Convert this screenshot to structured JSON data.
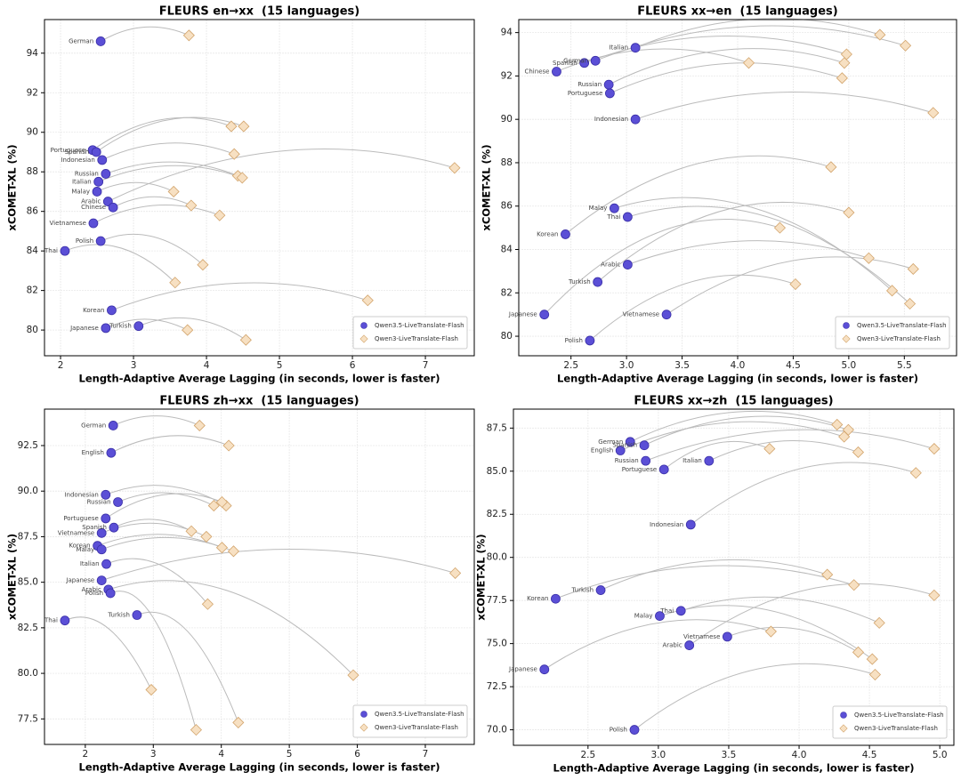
{
  "chart_data": [
    {
      "type": "scatter",
      "title": "FLEURS en→xx  (15 languages)",
      "xlabel": "Length-Adaptive Average Lagging (in seconds, lower is faster)",
      "ylabel": "xCOMET-XL (%)",
      "xlim": [
        1.78,
        7.67
      ],
      "ylim": [
        78.7,
        95.7
      ],
      "xticks": [
        2,
        3,
        4,
        5,
        6,
        7
      ],
      "yticks": [
        80,
        82,
        84,
        86,
        88,
        90,
        92,
        94
      ],
      "grid": true,
      "legend": "lower right",
      "categories": [
        "German",
        "Portuguese",
        "Spanish",
        "Indonesian",
        "Russian",
        "Italian",
        "Malay",
        "Arabic",
        "Chinese",
        "Vietnamese",
        "Polish",
        "Thai",
        "Korean",
        "Japanese",
        "Turkish"
      ],
      "series": [
        {
          "name": "Qwen3.5-LiveTranslate-Flash",
          "marker": "circle",
          "color": "#5b4fd6",
          "edgecolor": "#3a2fa8",
          "x": [
            2.55,
            2.44,
            2.49,
            2.57,
            2.62,
            2.52,
            2.5,
            2.65,
            2.72,
            2.45,
            2.55,
            2.06,
            2.7,
            2.62,
            3.07
          ],
          "values": [
            94.6,
            89.1,
            89.0,
            88.6,
            87.9,
            87.5,
            87.0,
            86.5,
            86.2,
            85.4,
            84.5,
            84.0,
            81.0,
            80.1,
            80.2
          ]
        },
        {
          "name": "Qwen3-LiveTranslate-Flash",
          "marker": "diamond",
          "color": "#f7e0c2",
          "edgecolor": "#d2a46c",
          "x": [
            3.76,
            4.34,
            4.51,
            4.38,
            4.43,
            4.49,
            3.55,
            7.4,
            3.79,
            4.18,
            3.95,
            3.57,
            6.21,
            3.74,
            4.54
          ],
          "values": [
            94.9,
            90.3,
            90.3,
            88.9,
            87.8,
            87.7,
            87.0,
            88.2,
            86.3,
            85.8,
            83.3,
            82.4,
            81.5,
            80.0,
            79.5
          ]
        }
      ]
    },
    {
      "type": "scatter",
      "title": "FLEURS xx→en  (15 languages)",
      "xlabel": "Length-Adaptive Average Lagging (in seconds, lower is faster)",
      "ylabel": "xCOMET-XL (%)",
      "xlim": [
        2.03,
        5.97
      ],
      "ylim": [
        79.1,
        94.6
      ],
      "xticks": [
        {
          "value": 2.5,
          "label": "2.5"
        },
        {
          "value": 3,
          "label": "3.0"
        },
        {
          "value": 3.5,
          "label": "3.5"
        },
        {
          "value": 4,
          "label": "4.0"
        },
        {
          "value": 4.5,
          "label": "4.5"
        },
        {
          "value": 5,
          "label": "5.0"
        },
        {
          "value": 5.5,
          "label": "5.5"
        }
      ],
      "yticks": [
        80,
        82,
        84,
        86,
        88,
        90,
        92,
        94
      ],
      "grid": true,
      "legend": "lower right",
      "categories": [
        "Italian",
        "German",
        "Spanish",
        "Chinese",
        "Russian",
        "Portuguese",
        "Indonesian",
        "Malay",
        "Thai",
        "Korean",
        "Arabic",
        "Turkish",
        "Japanese",
        "Vietnamese",
        "Polish"
      ],
      "series": [
        {
          "name": "Qwen3.5-LiveTranslate-Flash",
          "marker": "circle",
          "color": "#5b4fd6",
          "edgecolor": "#3a2fa8",
          "x": [
            3.08,
            2.72,
            2.62,
            2.37,
            2.84,
            2.85,
            3.08,
            2.89,
            3.01,
            2.45,
            3.01,
            2.74,
            2.26,
            3.36,
            2.67
          ],
          "values": [
            93.3,
            92.7,
            92.6,
            92.2,
            91.6,
            91.2,
            90.0,
            85.9,
            85.5,
            84.7,
            83.3,
            82.5,
            81.0,
            81.0,
            79.8
          ]
        },
        {
          "name": "Qwen3-LiveTranslate-Flash",
          "marker": "diamond",
          "color": "#f7e0c2",
          "edgecolor": "#d2a46c",
          "x": [
            5.28,
            5.51,
            4.98,
            4.1,
            4.96,
            4.94,
            5.76,
            5.39,
            5.55,
            4.84,
            5.18,
            5.0,
            4.38,
            5.58,
            4.52
          ],
          "values": [
            93.9,
            93.4,
            93.0,
            92.6,
            92.6,
            91.9,
            90.3,
            82.1,
            81.5,
            87.8,
            83.6,
            85.7,
            85.0,
            83.1,
            82.4
          ]
        }
      ]
    },
    {
      "type": "scatter",
      "title": "FLEURS zh→xx  (15 languages)",
      "xlabel": "Length-Adaptive Average Lagging (in seconds, lower is faster)",
      "ylabel": "xCOMET-XL (%)",
      "xlim": [
        1.4,
        7.72
      ],
      "ylim": [
        76.1,
        94.5
      ],
      "xticks": [
        2,
        3,
        4,
        5,
        6,
        7
      ],
      "yticks": [
        77.5,
        {
          "value": 80,
          "label": "80.0"
        },
        82.5,
        {
          "value": 85,
          "label": "85.0"
        },
        87.5,
        {
          "value": 90,
          "label": "90.0"
        },
        92.5
      ],
      "grid": true,
      "legend": "lower right",
      "categories": [
        "German",
        "English",
        "Indonesian",
        "Russian",
        "Portuguese",
        "Spanish",
        "Vietnamese",
        "Korean",
        "Malay",
        "Italian",
        "Japanese",
        "Arabic",
        "Polish",
        "Turkish",
        "Thai"
      ],
      "series": [
        {
          "name": "Qwen3.5-LiveTranslate-Flash",
          "marker": "circle",
          "color": "#5b4fd6",
          "edgecolor": "#3a2fa8",
          "x": [
            2.41,
            2.38,
            2.3,
            2.48,
            2.3,
            2.42,
            2.24,
            2.18,
            2.24,
            2.31,
            2.24,
            2.34,
            2.37,
            2.76,
            1.7
          ],
          "values": [
            93.6,
            92.1,
            89.8,
            89.4,
            88.5,
            88.0,
            87.7,
            87.0,
            86.8,
            86.0,
            85.1,
            84.6,
            84.4,
            83.2,
            82.9
          ]
        },
        {
          "name": "Qwen3-LiveTranslate-Flash",
          "marker": "diamond",
          "color": "#f7e0c2",
          "edgecolor": "#d2a46c",
          "x": [
            3.68,
            4.11,
            4.07,
            3.89,
            4.01,
            3.56,
            3.78,
            4.01,
            4.18,
            3.8,
            7.44,
            5.94,
            3.63,
            4.25,
            2.97
          ],
          "values": [
            93.6,
            92.5,
            89.2,
            89.2,
            89.4,
            87.8,
            87.5,
            86.9,
            86.7,
            83.8,
            85.5,
            79.9,
            76.9,
            77.3,
            79.1
          ]
        }
      ]
    },
    {
      "type": "scatter",
      "title": "FLEURS xx→zh  (15 languages)",
      "xlabel": "Length-Adaptive Average Lagging (in seconds, lower is faster)",
      "ylabel": "xCOMET-XL (%)",
      "xlim": [
        1.97,
        5.1
      ],
      "ylim": [
        69.1,
        88.6
      ],
      "xticks": [
        {
          "value": 2.5,
          "label": "2.5"
        },
        {
          "value": 3,
          "label": "3.0"
        },
        {
          "value": 3.5,
          "label": "3.5"
        },
        {
          "value": 4,
          "label": "4.0"
        },
        {
          "value": 4.5,
          "label": "4.5"
        },
        {
          "value": 5,
          "label": "5.0"
        }
      ],
      "yticks": [
        {
          "value": 70,
          "label": "70.0"
        },
        72.5,
        {
          "value": 75,
          "label": "75.0"
        },
        77.5,
        {
          "value": 80,
          "label": "80.0"
        },
        82.5,
        {
          "value": 85,
          "label": "85.0"
        },
        87.5
      ],
      "grid": true,
      "legend": "lower right",
      "categories": [
        "German",
        "Spanish",
        "English",
        "Russian",
        "Italian",
        "Portuguese",
        "Indonesian",
        "Turkish",
        "Korean",
        "Thai",
        "Malay",
        "Vietnamese",
        "Arabic",
        "Japanese",
        "Polish"
      ],
      "series": [
        {
          "name": "Qwen3.5-LiveTranslate-Flash",
          "marker": "circle",
          "color": "#5b4fd6",
          "edgecolor": "#3a2fa8",
          "x": [
            2.8,
            2.9,
            2.73,
            2.91,
            3.36,
            3.04,
            3.23,
            2.59,
            2.27,
            3.16,
            3.01,
            3.49,
            3.22,
            2.19,
            2.83
          ],
          "values": [
            86.7,
            86.5,
            86.2,
            85.6,
            85.6,
            85.1,
            81.9,
            78.1,
            77.6,
            76.9,
            76.6,
            75.4,
            74.9,
            73.5,
            70.0
          ]
        },
        {
          "name": "Qwen3-LiveTranslate-Flash",
          "marker": "diamond",
          "color": "#f7e0c2",
          "edgecolor": "#d2a46c",
          "x": [
            4.27,
            4.35,
            4.32,
            4.96,
            4.42,
            3.79,
            4.83,
            4.2,
            4.39,
            4.57,
            4.52,
            4.42,
            4.96,
            3.8,
            4.54
          ],
          "values": [
            87.7,
            87.4,
            87.0,
            86.3,
            86.1,
            86.3,
            84.9,
            79.0,
            78.4,
            76.2,
            74.1,
            74.5,
            77.8,
            75.7,
            73.2
          ]
        }
      ]
    }
  ]
}
